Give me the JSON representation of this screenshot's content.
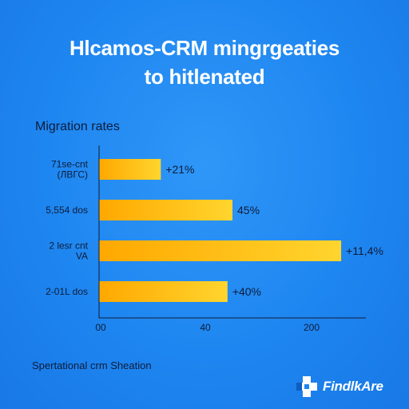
{
  "title_line1": "Hlcamos-CRM mingrgeaties",
  "title_line2": "to hitlenated",
  "footer_text": "Spertational crm Sheation",
  "brand": {
    "name": "FindlkAre",
    "icon": "plus-cross-icon"
  },
  "colors": {
    "background": "#1e86f0",
    "bar_start": "#ffa800",
    "bar_end": "#ffd52e",
    "text_dark": "#0f1c3a",
    "text_light": "#ffffff"
  },
  "chart_data": {
    "type": "bar",
    "orientation": "horizontal",
    "title": "Migration rates",
    "categories": [
      [
        "71se-cnt",
        "(ЛВГС)"
      ],
      [
        "5,554 dos"
      ],
      [
        "2 lesr cnt",
        "VA"
      ],
      [
        "2-01L dos"
      ]
    ],
    "values": [
      25,
      54,
      98,
      52
    ],
    "data_labels": [
      "+21%",
      "45%",
      "+11,4%",
      "+40%"
    ],
    "x_ticks": [
      "00",
      "40",
      "200"
    ],
    "xlim": [
      0,
      108
    ],
    "grid": false,
    "legend": "none"
  }
}
